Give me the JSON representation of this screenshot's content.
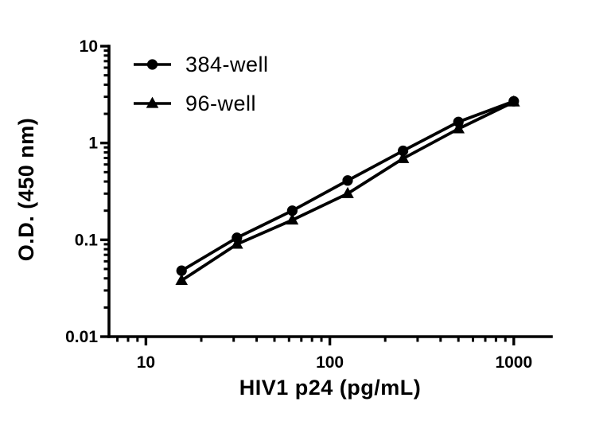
{
  "figure": {
    "background_color": "#ffffff",
    "ink_color": "#000000"
  },
  "chart_data": {
    "type": "line",
    "title": "",
    "xlabel": "HIV1 p24 (pg/mL)",
    "ylabel": "O.D. (450 nm)",
    "x_scale": "log",
    "y_scale": "log",
    "xlim": [
      6.3,
      1600
    ],
    "ylim": [
      0.01,
      10
    ],
    "x_major_ticks": [
      10,
      100,
      1000
    ],
    "y_major_ticks": [
      0.01,
      0.1,
      1,
      10
    ],
    "grid": false,
    "legend_position": "inside-top-left",
    "x": [
      15.63,
      31.25,
      62.5,
      125,
      250,
      500,
      1000
    ],
    "series": [
      {
        "name": "384-well",
        "marker": "circle",
        "color": "#000000",
        "values": [
          0.048,
          0.105,
          0.2,
          0.41,
          0.83,
          1.65,
          2.7
        ]
      },
      {
        "name": "96-well",
        "marker": "triangle",
        "color": "#000000",
        "values": [
          0.038,
          0.09,
          0.16,
          0.3,
          0.69,
          1.4,
          2.65
        ]
      }
    ]
  }
}
